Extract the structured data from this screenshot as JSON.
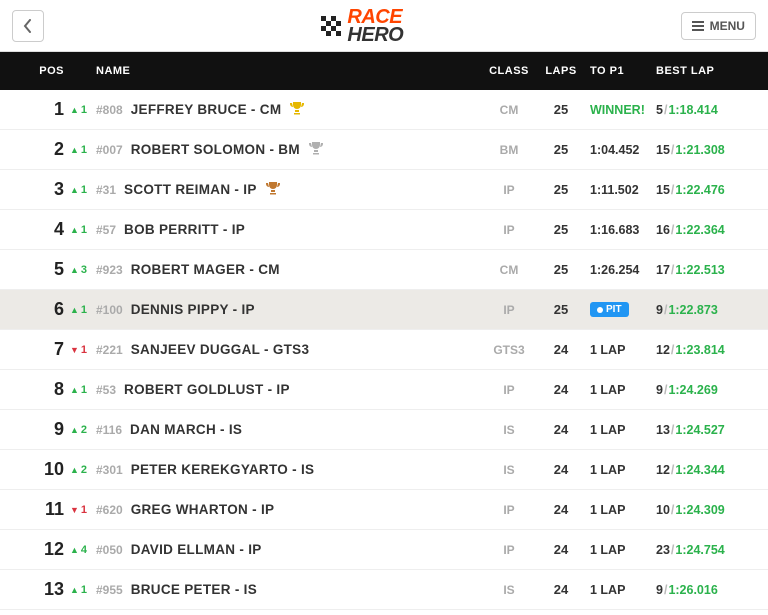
{
  "header": {
    "logo_race": "RACE",
    "logo_hero": "HERO",
    "menu_label": "MENU"
  },
  "columns": {
    "pos": "POS",
    "name": "NAME",
    "class": "CLASS",
    "laps": "LAPS",
    "to_p1": "TO P1",
    "best_lap": "BEST LAP"
  },
  "rows": [
    {
      "pos": "1",
      "delta_dir": "up",
      "delta": "1",
      "num": "#808",
      "name": "JEFFREY BRUCE - CM",
      "trophy": "gold",
      "class": "CM",
      "laps": "25",
      "to_p1": "WINNER!",
      "to_p1_style": "win",
      "best_lap_n": "5",
      "best_lap_t": "1:18.414"
    },
    {
      "pos": "2",
      "delta_dir": "up",
      "delta": "1",
      "num": "#007",
      "name": "ROBERT SOLOMON - BM",
      "trophy": "silver",
      "class": "BM",
      "laps": "25",
      "to_p1": "1:04.452",
      "best_lap_n": "15",
      "best_lap_t": "1:21.308"
    },
    {
      "pos": "3",
      "delta_dir": "up",
      "delta": "1",
      "num": "#31",
      "name": "SCOTT REIMAN - IP",
      "trophy": "bronze",
      "class": "IP",
      "laps": "25",
      "to_p1": "1:11.502",
      "best_lap_n": "15",
      "best_lap_t": "1:22.476"
    },
    {
      "pos": "4",
      "delta_dir": "up",
      "delta": "1",
      "num": "#57",
      "name": "BOB PERRITT - IP",
      "class": "IP",
      "laps": "25",
      "to_p1": "1:16.683",
      "best_lap_n": "16",
      "best_lap_t": "1:22.364"
    },
    {
      "pos": "5",
      "delta_dir": "up",
      "delta": "3",
      "num": "#923",
      "name": "ROBERT MAGER - CM",
      "class": "CM",
      "laps": "25",
      "to_p1": "1:26.254",
      "best_lap_n": "17",
      "best_lap_t": "1:22.513"
    },
    {
      "pos": "6",
      "delta_dir": "up",
      "delta": "1",
      "num": "#100",
      "name": "DENNIS PIPPY - IP",
      "class": "IP",
      "laps": "25",
      "to_p1": "PIT",
      "to_p1_style": "pit",
      "best_lap_n": "9",
      "best_lap_t": "1:22.873",
      "highlight": true
    },
    {
      "pos": "7",
      "delta_dir": "down",
      "delta": "1",
      "num": "#221",
      "name": "SANJEEV DUGGAL - GTS3",
      "class": "GTS3",
      "laps": "24",
      "to_p1": "1 LAP",
      "best_lap_n": "12",
      "best_lap_t": "1:23.814"
    },
    {
      "pos": "8",
      "delta_dir": "up",
      "delta": "1",
      "num": "#53",
      "name": "ROBERT GOLDLUST - IP",
      "class": "IP",
      "laps": "24",
      "to_p1": "1 LAP",
      "best_lap_n": "9",
      "best_lap_t": "1:24.269"
    },
    {
      "pos": "9",
      "delta_dir": "up",
      "delta": "2",
      "num": "#116",
      "name": "DAN MARCH - IS",
      "class": "IS",
      "laps": "24",
      "to_p1": "1 LAP",
      "best_lap_n": "13",
      "best_lap_t": "1:24.527"
    },
    {
      "pos": "10",
      "delta_dir": "up",
      "delta": "2",
      "num": "#301",
      "name": "PETER KEREKGYARTO - IS",
      "class": "IS",
      "laps": "24",
      "to_p1": "1 LAP",
      "best_lap_n": "12",
      "best_lap_t": "1:24.344"
    },
    {
      "pos": "11",
      "delta_dir": "down",
      "delta": "1",
      "num": "#620",
      "name": "GREG WHARTON - IP",
      "class": "IP",
      "laps": "24",
      "to_p1": "1 LAP",
      "best_lap_n": "10",
      "best_lap_t": "1:24.309"
    },
    {
      "pos": "12",
      "delta_dir": "up",
      "delta": "4",
      "num": "#050",
      "name": "DAVID ELLMAN - IP",
      "class": "IP",
      "laps": "24",
      "to_p1": "1 LAP",
      "best_lap_n": "23",
      "best_lap_t": "1:24.754"
    },
    {
      "pos": "13",
      "delta_dir": "up",
      "delta": "1",
      "num": "#955",
      "name": "BRUCE PETER - IS",
      "class": "IS",
      "laps": "24",
      "to_p1": "1 LAP",
      "best_lap_n": "9",
      "best_lap_t": "1:26.016"
    }
  ],
  "trophy_colors": {
    "gold": "#e6b800",
    "silver": "#b0b0b0",
    "bronze": "#c07830"
  }
}
